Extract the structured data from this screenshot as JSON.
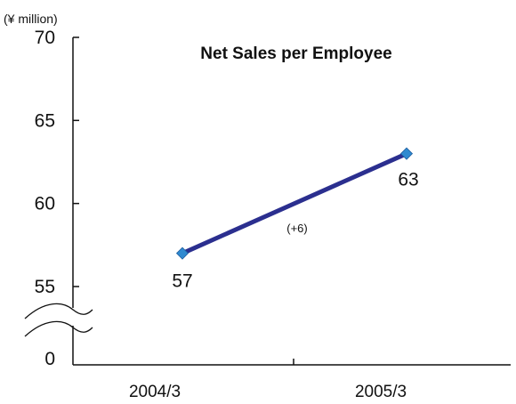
{
  "chart_data": {
    "type": "line",
    "title": "Net Sales per Employee",
    "unit_label": "(¥ million)",
    "categories": [
      "2004/3",
      "2005/3"
    ],
    "series": [
      {
        "values": [
          57,
          63
        ]
      }
    ],
    "data_labels": [
      "57",
      "63"
    ],
    "annotation": "(+6)",
    "y_ticks": [
      {
        "value": 0,
        "label": "0"
      },
      {
        "value": 55,
        "label": "55"
      },
      {
        "value": 60,
        "label": "60"
      },
      {
        "value": 65,
        "label": "65"
      },
      {
        "value": 70,
        "label": "70"
      }
    ],
    "y_axis_break": {
      "from": 0,
      "to": 55
    },
    "ylim": [
      55,
      70
    ],
    "grid": false,
    "legend": "none",
    "colors": {
      "line": "#2b2f8f",
      "marker": "#2f8ad0",
      "axis": "#111111",
      "text": "#111111"
    }
  }
}
